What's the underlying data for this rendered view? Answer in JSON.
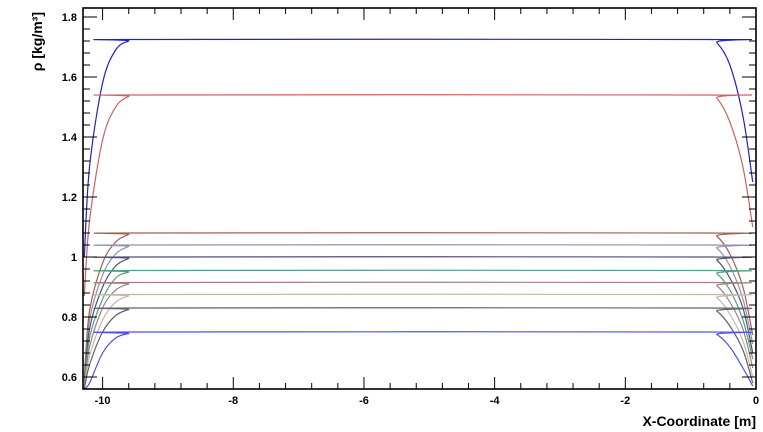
{
  "chart_data": {
    "type": "line",
    "title": "",
    "xlabel": "X-Coordinate [m]",
    "ylabel": "ρ [kg/m³]",
    "xlim": [
      -10.3,
      0
    ],
    "ylim": [
      0.56,
      1.83
    ],
    "xticks": [
      -10,
      -8,
      -6,
      -4,
      -2,
      0
    ],
    "yticks": [
      0.6,
      0.8,
      1,
      1.2,
      1.4,
      1.6,
      1.8
    ],
    "grid": false,
    "legend": "none",
    "series": [
      {
        "color": "#2020d0",
        "x": [
          -10.28,
          -10.2,
          -10.0,
          -9.8,
          -9.6,
          -9.45,
          -0.75,
          -0.6,
          -0.4,
          -0.2,
          -0.05
        ],
        "y": [
          1.0,
          1.3,
          1.58,
          1.69,
          1.72,
          1.725,
          1.725,
          1.715,
          1.64,
          1.47,
          1.25
        ]
      },
      {
        "color": "#d06060",
        "x": [
          -10.28,
          -10.2,
          -10.0,
          -9.8,
          -9.6,
          -9.45,
          -0.75,
          -0.6,
          -0.4,
          -0.2,
          -0.05
        ],
        "y": [
          0.87,
          1.12,
          1.39,
          1.5,
          1.535,
          1.54,
          1.54,
          1.53,
          1.45,
          1.3,
          1.1
        ]
      },
      {
        "color": "#a06050",
        "x": [
          -10.28,
          -10.2,
          -10.0,
          -9.8,
          -9.6,
          -9.45,
          -0.75,
          -0.6,
          -0.4,
          -0.2,
          -0.05
        ],
        "y": [
          0.6,
          0.82,
          0.98,
          1.05,
          1.075,
          1.08,
          1.08,
          1.07,
          1.01,
          0.9,
          0.74
        ]
      },
      {
        "color": "#9090b0",
        "x": [
          -10.28,
          -10.2,
          -10.0,
          -9.8,
          -9.6,
          -9.45,
          -0.75,
          -0.6,
          -0.4,
          -0.2,
          -0.05
        ],
        "y": [
          0.58,
          0.79,
          0.94,
          1.01,
          1.035,
          1.04,
          1.04,
          1.03,
          0.97,
          0.86,
          0.71
        ]
      },
      {
        "color": "#505070",
        "x": [
          -10.28,
          -10.2,
          -10.0,
          -9.8,
          -9.6,
          -9.45,
          -0.75,
          -0.6,
          -0.4,
          -0.2,
          -0.05
        ],
        "y": [
          0.57,
          0.76,
          0.9,
          0.97,
          0.995,
          1.0,
          1.0,
          0.99,
          0.93,
          0.83,
          0.68
        ]
      },
      {
        "color": "#50a080",
        "x": [
          -10.28,
          -10.2,
          -10.0,
          -9.8,
          -9.6,
          -9.45,
          -0.75,
          -0.6,
          -0.4,
          -0.2,
          -0.05
        ],
        "y": [
          0.56,
          0.73,
          0.86,
          0.93,
          0.95,
          0.955,
          0.955,
          0.945,
          0.89,
          0.79,
          0.66
        ]
      },
      {
        "color": "#a08080",
        "x": [
          -10.28,
          -10.2,
          -10.0,
          -9.8,
          -9.6,
          -9.45,
          -0.75,
          -0.6,
          -0.4,
          -0.2,
          -0.05
        ],
        "y": [
          0.56,
          0.7,
          0.83,
          0.89,
          0.91,
          0.915,
          0.915,
          0.905,
          0.85,
          0.76,
          0.63
        ]
      },
      {
        "color": "#c8b8a0",
        "x": [
          -10.28,
          -10.2,
          -10.0,
          -9.8,
          -9.6,
          -9.45,
          -0.75,
          -0.6,
          -0.4,
          -0.2,
          -0.05
        ],
        "y": [
          0.56,
          0.67,
          0.79,
          0.85,
          0.87,
          0.875,
          0.875,
          0.865,
          0.81,
          0.72,
          0.6
        ]
      },
      {
        "color": "#606070",
        "x": [
          -10.28,
          -10.2,
          -10.0,
          -9.8,
          -9.6,
          -9.45,
          -0.75,
          -0.6,
          -0.4,
          -0.2,
          -0.05
        ],
        "y": [
          0.56,
          0.64,
          0.75,
          0.805,
          0.825,
          0.83,
          0.83,
          0.82,
          0.77,
          0.69,
          0.58
        ]
      },
      {
        "color": "#5050e0",
        "x": [
          -10.28,
          -10.2,
          -10.0,
          -9.8,
          -9.6,
          -9.45,
          -0.75,
          -0.6,
          -0.4,
          -0.2,
          -0.05
        ],
        "y": [
          0.56,
          0.58,
          0.68,
          0.73,
          0.745,
          0.75,
          0.75,
          0.742,
          0.7,
          0.63,
          0.57
        ]
      }
    ]
  }
}
